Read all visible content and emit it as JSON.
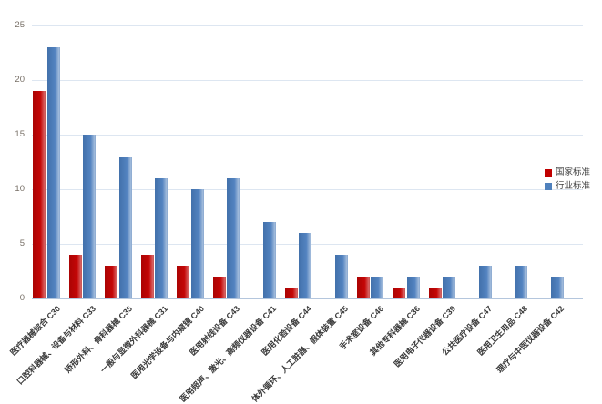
{
  "chart_data": {
    "type": "bar",
    "title": "",
    "xlabel": "",
    "ylabel": "",
    "ylim": [
      0,
      25
    ],
    "yticks": [
      0,
      5,
      10,
      15,
      20,
      25
    ],
    "grid": true,
    "legend_position": "right",
    "categories": [
      "医疗器械综合 C30",
      "口腔科器械、设备与材料 C33",
      "矫形外科、骨科器械 C35",
      "一般与显微外科器械 C31",
      "医用光学设备与内窥镜 C40",
      "医用射线设备 C43",
      "医用超声、激光、高频仪器设备 C41",
      "医用化验设备 C44",
      "体外循环、人工脏器、假体装置 C45",
      "手术室设备 C46",
      "其他专科器械 C36",
      "医用电子仪器设备 C39",
      "公共医疗设备 C47",
      "医用卫生用品 C48",
      "理疗与中医仪器设备 C42"
    ],
    "series": [
      {
        "name": "国家标准",
        "color": "#c00000",
        "values": [
          19,
          4,
          3,
          4,
          3,
          2,
          0,
          1,
          0,
          2,
          1,
          1,
          0,
          0,
          0
        ]
      },
      {
        "name": "行业标准",
        "color": "#4f81bd",
        "values": [
          23,
          15,
          13,
          11,
          10,
          11,
          7,
          6,
          4,
          2,
          2,
          2,
          3,
          3,
          2
        ]
      }
    ]
  }
}
